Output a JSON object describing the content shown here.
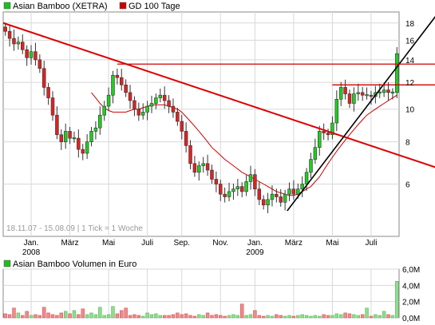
{
  "legend": {
    "main": [
      {
        "label": "Asian Bamboo (XETRA)",
        "color": "#22bb22"
      },
      {
        "label": "GD 100 Tage",
        "color": "#cc0000"
      }
    ],
    "volume": [
      {
        "label": "Asian Bamboo Volumen in Euro",
        "color": "#22bb22"
      }
    ]
  },
  "info_text": "18.11.07 - 15.08.09  |  1 Tick = 1 Woche",
  "colors": {
    "up": "#22cc22",
    "down": "#dd2222",
    "ma": "#cc0000",
    "trend_down": "#dd0000",
    "trend_up": "#000000",
    "resistance": "#cc0000",
    "grid": "#d8d8d8",
    "frame": "#888888"
  },
  "chart_data": [
    {
      "type": "candlestick",
      "title": "Asian Bamboo (XETRA)",
      "x_ticks": [
        "Jan.",
        "März",
        "Mai",
        "Juli",
        "Sep.",
        "Nov.",
        "Jan.",
        "März",
        "Mai",
        "Juli"
      ],
      "x_tick_weeks": [
        6,
        15,
        24,
        33,
        41,
        50,
        58,
        67,
        76,
        85
      ],
      "x_year_labels": [
        {
          "label": "2008",
          "week": 6
        },
        {
          "label": "2009",
          "week": 58
        }
      ],
      "y_ticks": [
        6,
        8,
        10,
        12,
        14,
        16,
        18
      ],
      "ylim": [
        4.2,
        19.4
      ],
      "y_scale": "log",
      "weeks": 92,
      "closes": [
        17.0,
        16.2,
        15.6,
        15.8,
        15.0,
        14.2,
        14.8,
        14.0,
        13.2,
        11.6,
        10.8,
        9.6,
        8.4,
        8.0,
        8.6,
        8.2,
        8.2,
        7.6,
        7.4,
        8.0,
        8.6,
        8.8,
        9.6,
        10.2,
        11.0,
        12.6,
        12.4,
        11.8,
        11.2,
        10.6,
        10.0,
        9.6,
        9.8,
        10.2,
        10.4,
        10.8,
        11.0,
        10.6,
        10.2,
        9.8,
        9.2,
        8.6,
        7.8,
        6.9,
        6.5,
        6.8,
        6.9,
        6.6,
        6.2,
        6.0,
        5.6,
        5.5,
        5.7,
        5.8,
        5.9,
        5.7,
        6.1,
        6.4,
        5.8,
        5.4,
        5.2,
        5.4,
        5.6,
        5.5,
        5.3,
        5.6,
        5.8,
        5.6,
        5.8,
        6.0,
        6.5,
        7.1,
        7.7,
        8.6,
        8.5,
        8.4,
        9.1,
        10.7,
        11.6,
        11.1,
        10.4,
        11.1,
        11.2,
        11.0,
        11.0,
        10.9,
        11.2,
        11.2,
        11.4,
        11.2,
        11.2,
        14.6
      ],
      "ma_label": "GD 100 Tage",
      "ma_start_week": 20,
      "ma_values": [
        11.2,
        10.8,
        10.4,
        10.1,
        9.9,
        9.8,
        9.8,
        9.8,
        9.8,
        9.9,
        10.0,
        10.0,
        10.1,
        10.2,
        10.3,
        10.3,
        10.3,
        10.3,
        10.2,
        10.1,
        10.0,
        9.8,
        9.5,
        9.2,
        8.9,
        8.6,
        8.3,
        8.0,
        7.7,
        7.5,
        7.3,
        7.1,
        6.95,
        6.8,
        6.65,
        6.5,
        6.4,
        6.3,
        6.2,
        6.1,
        6.0,
        5.9,
        5.8,
        5.7,
        5.65,
        5.6,
        5.55,
        5.55,
        5.6,
        5.7,
        5.8,
        5.9,
        6.1,
        6.3,
        6.6,
        6.9,
        7.2,
        7.5,
        7.8,
        8.1,
        8.4,
        8.7,
        9.0,
        9.3,
        9.6,
        9.8,
        10.0,
        10.2,
        10.4,
        10.6,
        10.8,
        11.0
      ],
      "trendlines": [
        {
          "name": "downtrend",
          "from": [
            0,
            18.0
          ],
          "to": [
            93,
            7.2
          ]
        },
        {
          "name": "uptrend",
          "from": [
            66,
            5.0
          ],
          "to": [
            93,
            14.4
          ]
        }
      ],
      "resistance_lines": [
        {
          "from_week": 26,
          "value": 13.6
        },
        {
          "from_week": 76,
          "value": 11.8
        }
      ]
    },
    {
      "type": "bar",
      "title": "Asian Bamboo Volumen in Euro",
      "y_ticks": [
        "0,0M",
        "2,0M",
        "4,0M",
        "6,0M"
      ],
      "y_tick_values": [
        0,
        2,
        4,
        6
      ],
      "ylim": [
        0,
        6.0
      ],
      "unit": "Mio. Euro",
      "values": [
        0.5,
        0.4,
        1.2,
        0.6,
        0.3,
        0.8,
        0.3,
        0.4,
        0.3,
        1.3,
        0.6,
        0.4,
        0.3,
        0.6,
        0.8,
        0.5,
        0.9,
        0.4,
        1.1,
        0.4,
        0.6,
        0.4,
        1.3,
        0.3,
        0.4,
        1.4,
        0.5,
        0.9,
        1.2,
        0.3,
        0.4,
        0.3,
        0.2,
        0.6,
        0.4,
        0.5,
        0.3,
        0.3,
        0.3,
        0.4,
        0.6,
        0.4,
        0.5,
        0.3,
        0.2,
        0.4,
        0.3,
        0.6,
        0.3,
        0.4,
        0.3,
        0.2,
        0.3,
        0.4,
        0.3,
        1.7,
        0.3,
        0.4,
        0.9,
        0.3,
        0.2,
        0.3,
        0.2,
        0.4,
        0.3,
        0.2,
        0.3,
        0.2,
        0.3,
        0.4,
        0.3,
        0.2,
        0.3,
        0.2,
        0.4,
        0.3,
        0.3,
        0.5,
        0.4,
        0.6,
        0.5,
        0.4,
        0.3,
        0.4,
        1.2,
        0.2,
        0.4,
        0.3,
        0.8,
        0.4,
        0.3,
        4.5
      ]
    }
  ]
}
